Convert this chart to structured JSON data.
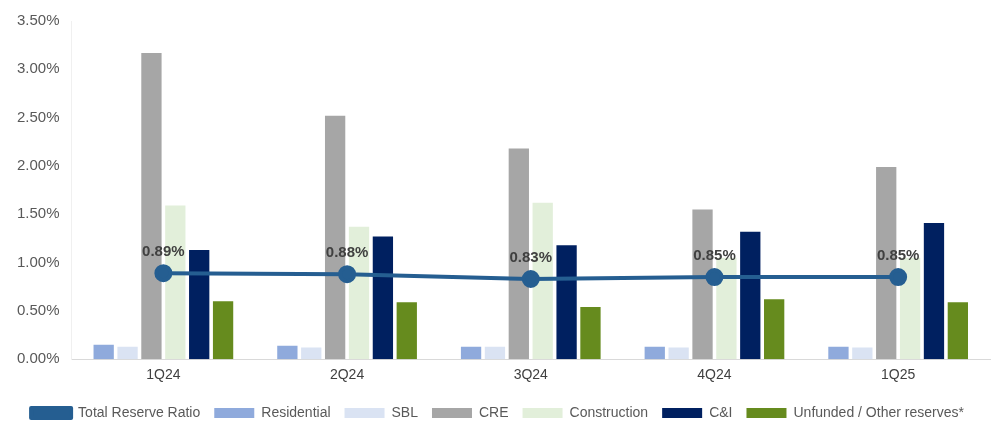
{
  "chart_data": {
    "type": "bar",
    "categories": [
      "1Q24",
      "2Q24",
      "3Q24",
      "4Q24",
      "1Q25"
    ],
    "series": [
      {
        "name": "Residential",
        "color": "#8faadc",
        "values": [
          0.15,
          0.14,
          0.13,
          0.13,
          0.13
        ]
      },
      {
        "name": "SBL",
        "color": "#dae3f3",
        "values": [
          0.13,
          0.12,
          0.13,
          0.12,
          0.12
        ]
      },
      {
        "name": "CRE",
        "color": "#a6a6a6",
        "values": [
          3.17,
          2.52,
          2.18,
          1.55,
          1.99
        ]
      },
      {
        "name": "Construction",
        "color": "#e2efda",
        "values": [
          1.59,
          1.37,
          1.62,
          1.05,
          1.05
        ]
      },
      {
        "name": "C&I",
        "color": "#002060",
        "values": [
          1.13,
          1.27,
          1.18,
          1.32,
          1.41
        ]
      },
      {
        "name": "Unfunded / Other reserves*",
        "color": "#668b1e",
        "values": [
          0.6,
          0.59,
          0.54,
          0.62,
          0.59
        ]
      },
      {
        "name": "Total Reserve Ratio",
        "type": "line",
        "color": "#255e91",
        "marker": "circle",
        "values": [
          0.89,
          0.88,
          0.83,
          0.85,
          0.85
        ],
        "value_labels": [
          "0.89%",
          "0.88%",
          "0.83%",
          "0.85%",
          "0.85%"
        ]
      }
    ],
    "ylim": [
      0,
      3.5
    ],
    "yticks": [
      {
        "value": 0,
        "label": "0.00%"
      },
      {
        "value": 0.5,
        "label": "0.50%"
      },
      {
        "value": 1,
        "label": "1.00%"
      },
      {
        "value": 1.5,
        "label": "1.50%"
      },
      {
        "value": 2,
        "label": "2.00%"
      },
      {
        "value": 2.5,
        "label": "2.50%"
      },
      {
        "value": 3,
        "label": "3.00%"
      },
      {
        "value": 3.5,
        "label": "3.50%"
      }
    ],
    "grid": false,
    "legend": "bottom"
  }
}
